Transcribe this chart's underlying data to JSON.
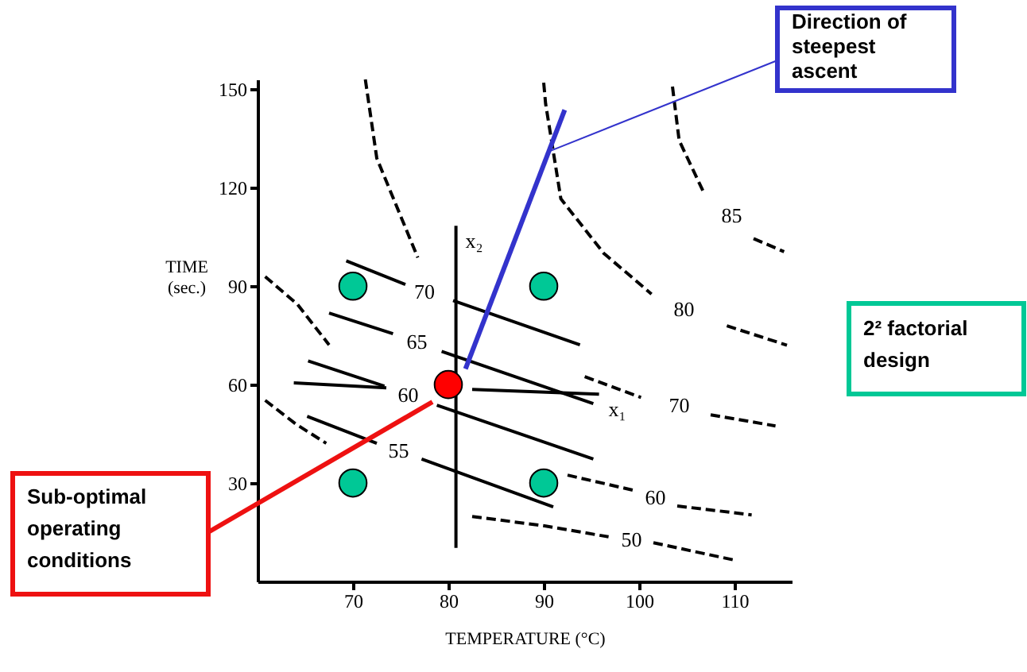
{
  "chart_data": {
    "type": "line",
    "xlabel": "TEMPERATURE (°C)",
    "ylabel": "TIME (sec.)",
    "xlim": [
      60,
      116
    ],
    "xticks": [
      70,
      80,
      90,
      100,
      110
    ],
    "ylim": [
      0,
      153
    ],
    "yticks": [
      30,
      60,
      90,
      120,
      150
    ],
    "grid": false,
    "annotations": [
      {
        "text": "Direction of steepest ascent",
        "x": 90.5,
        "y": 131
      },
      "2² factorial design",
      "Sub-optimal operating conditions"
    ],
    "series": [
      {
        "type": "line",
        "line_style": "dashed",
        "marker": "none",
        "color": "#000000",
        "name": "85",
        "x": [
          103.5,
          104.2,
          106.8,
          109.7,
          112,
          115.2
        ],
        "values": [
          150.8,
          134.4,
          118.4,
          null,
          104.5,
          100.5
        ]
      },
      {
        "type": "line",
        "line_style": "dashed",
        "marker": "none",
        "color": "#000000",
        "name": "80",
        "x": [
          90,
          90.2,
          91.8,
          96.3,
          101.3,
          104.7,
          109.2,
          115.5
        ],
        "values": [
          152,
          145.6,
          116.6,
          100,
          87.6,
          null,
          77.9,
          72
        ]
      },
      {
        "type": "line",
        "line_style": "dashed",
        "marker": "none",
        "color": "#000000",
        "x": [
          71.3,
          72.5,
          76.8
        ],
        "values": [
          153,
          129,
          98.7
        ]
      },
      {
        "type": "line",
        "line_style": "dashed",
        "marker": "none",
        "color": "#000000",
        "x": [
          60.8,
          64.2,
          67.5
        ],
        "values": [
          92.9,
          84.4,
          72.1
        ]
      },
      {
        "type": "line",
        "line_style": "dashed",
        "marker": "none",
        "color": "#000000",
        "x": [
          60.8,
          64,
          67.2
        ],
        "values": [
          55.2,
          48,
          42.1
        ]
      },
      {
        "type": "line",
        "line_style": "dashed",
        "marker": "none",
        "color": "#000000",
        "name": "70",
        "x": [
          94.3,
          100.2,
          104.2,
          107.5,
          114.3
        ],
        "values": [
          62.4,
          56.1,
          null,
          50.8,
          47.4
        ]
      },
      {
        "type": "line",
        "line_style": "dashed",
        "marker": "none",
        "color": "#000000",
        "name": "60",
        "x": [
          92.5,
          99.7,
          101.7,
          104,
          111.8
        ],
        "values": [
          32.4,
          27.6,
          null,
          23,
          20.3
        ]
      },
      {
        "type": "line",
        "line_style": "dashed",
        "marker": "none",
        "color": "#000000",
        "name": "50",
        "x": [
          82.5,
          90.2,
          96.8,
          99.2,
          101.5,
          110
        ],
        "values": [
          19.8,
          16.9,
          13.6,
          null,
          11.8,
          6.5
        ]
      },
      {
        "type": "line",
        "line_style": "solid",
        "marker": "none",
        "color": "#000000",
        "name": "70",
        "x": [
          69.3,
          75.5,
          77.5,
          80.5,
          93.8
        ],
        "values": [
          97.7,
          90.5,
          null,
          85.6,
          72.1
        ]
      },
      {
        "type": "line",
        "line_style": "solid",
        "marker": "none",
        "color": "#000000",
        "name": "65",
        "x": [
          67.5,
          74.2,
          76.7,
          79.3,
          95.2
        ],
        "values": [
          81.8,
          75.5,
          null,
          70.1,
          54.2
        ]
      },
      {
        "type": "line",
        "line_style": "solid",
        "marker": "none",
        "color": "#000000",
        "name": "60",
        "x": [
          65.3,
          73.3,
          75.8,
          78.8,
          95.2
        ],
        "values": [
          67.2,
          59.5,
          null,
          53.7,
          37.3
        ]
      },
      {
        "type": "line",
        "line_style": "solid",
        "marker": "none",
        "color": "#000000",
        "name": "55",
        "x": [
          65.2,
          72.5,
          74.8,
          77.2,
          91
        ],
        "values": [
          50.3,
          42.1,
          null,
          37.3,
          22.7
        ]
      },
      {
        "type": "line",
        "line_style": "solid",
        "marker": "none",
        "color": "#000000",
        "x": [
          63.8,
          73.5
        ],
        "values": [
          60.5,
          59
        ]
      },
      {
        "type": "line",
        "line_style": "solid",
        "marker": "none",
        "color": "#000000",
        "name": "x₂",
        "x": [
          80.8,
          80.8
        ],
        "values": [
          10.2,
          108.4
        ]
      },
      {
        "type": "line",
        "line_style": "solid",
        "marker": "none",
        "color": "#000000",
        "name": "x₁",
        "x": [
          82.5,
          95.8
        ],
        "values": [
          58.5,
          57.1
        ]
      },
      {
        "line_style": "solid",
        "marker": "none",
        "color": "#3333cc",
        "x": [
          81.8,
          92.2
        ],
        "values": [
          64.8,
          143.7
        ]
      },
      {
        "type": "scatter",
        "marker": "circle",
        "color": "#00c896",
        "x": [
          70,
          90,
          70,
          90
        ],
        "values": [
          90,
          90,
          30,
          30
        ]
      },
      {
        "type": "scatter",
        "marker": "circle",
        "color": "#ff0000",
        "x": [
          80
        ],
        "values": [
          60
        ]
      }
    ]
  }
}
